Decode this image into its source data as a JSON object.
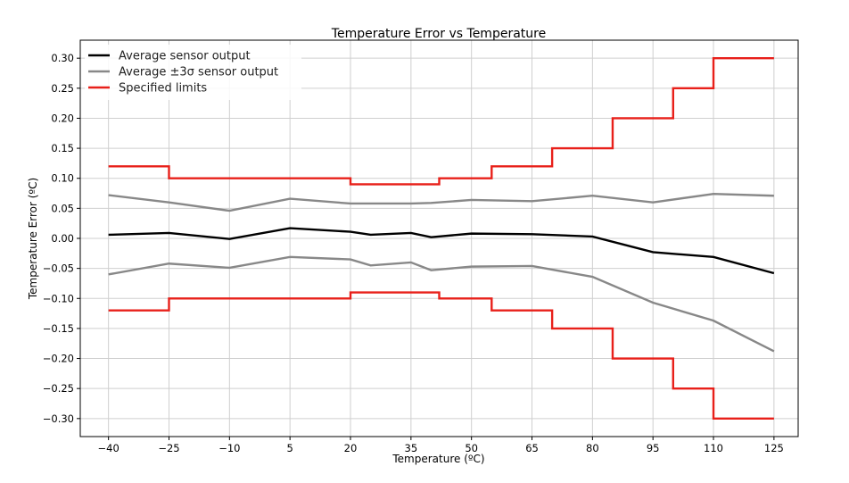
{
  "chart_data": {
    "type": "line",
    "title": "Temperature Error vs Temperature",
    "xlabel": "Temperature (ºC)",
    "ylabel": "Temperature Error  (ºC)",
    "xlim": [
      -47,
      131
    ],
    "ylim": [
      -0.33,
      0.33
    ],
    "x_ticks": [
      -40,
      -25,
      -10,
      5,
      20,
      35,
      50,
      65,
      80,
      95,
      110,
      125
    ],
    "x_tick_labels": [
      "−40",
      "−25",
      "−10",
      "5",
      "20",
      "35",
      "50",
      "65",
      "80",
      "95",
      "110",
      "125"
    ],
    "y_ticks": [
      0.3,
      0.25,
      0.2,
      0.15,
      0.1,
      0.05,
      0.0,
      -0.05,
      -0.1,
      -0.15,
      -0.2,
      -0.25,
      -0.3
    ],
    "y_tick_labels": [
      "0.30",
      "0.25",
      "0.20",
      "0.15",
      "0.10",
      "0.05",
      "0.00",
      "−0.05",
      "−0.10",
      "−0.15",
      "−0.20",
      "−0.25",
      "−0.30"
    ],
    "grid": true,
    "legend_position": "top-left",
    "legend": [
      {
        "label": "Average sensor output",
        "color": "#000000"
      },
      {
        "label": "Average ±3σ sensor output",
        "color": "#888888"
      },
      {
        "label": "Specified limits",
        "color": "#e8201a"
      }
    ],
    "series": [
      {
        "name": "Average sensor output",
        "color": "#000000",
        "width": 2.4,
        "x": [
          -40,
          -25,
          -10,
          5,
          20,
          25,
          35,
          40,
          50,
          65,
          80,
          95,
          110,
          125
        ],
        "y": [
          0.006,
          0.009,
          -0.001,
          0.017,
          0.011,
          0.006,
          0.009,
          0.002,
          0.008,
          0.007,
          0.003,
          -0.023,
          -0.031,
          -0.058
        ]
      },
      {
        "name": "Average ±3σ sensor output (upper)",
        "color": "#888888",
        "width": 2.4,
        "x": [
          -40,
          -25,
          -10,
          5,
          20,
          35,
          40,
          50,
          65,
          80,
          95,
          110,
          125
        ],
        "y": [
          0.072,
          0.06,
          0.046,
          0.066,
          0.058,
          0.058,
          0.059,
          0.064,
          0.062,
          0.071,
          0.06,
          0.074,
          0.071
        ]
      },
      {
        "name": "Average ±3σ sensor output (lower)",
        "color": "#888888",
        "width": 2.4,
        "x": [
          -40,
          -25,
          -10,
          5,
          20,
          25,
          35,
          40,
          50,
          65,
          80,
          95,
          110,
          125
        ],
        "y": [
          -0.06,
          -0.042,
          -0.049,
          -0.031,
          -0.035,
          -0.045,
          -0.04,
          -0.053,
          -0.047,
          -0.046,
          -0.064,
          -0.107,
          -0.137,
          -0.188
        ]
      },
      {
        "name": "Specified limits (upper)",
        "color": "#e8201a",
        "width": 2.4,
        "x": [
          -40,
          -25,
          -25,
          20,
          20,
          42,
          42,
          55,
          55,
          70,
          70,
          85,
          85,
          100,
          100,
          110,
          110,
          125
        ],
        "y": [
          0.12,
          0.12,
          0.1,
          0.1,
          0.09,
          0.09,
          0.1,
          0.1,
          0.12,
          0.12,
          0.15,
          0.15,
          0.2,
          0.2,
          0.25,
          0.25,
          0.3,
          0.3
        ]
      },
      {
        "name": "Specified limits (lower)",
        "color": "#e8201a",
        "width": 2.4,
        "x": [
          -40,
          -25,
          -25,
          20,
          20,
          42,
          42,
          55,
          55,
          70,
          70,
          85,
          85,
          100,
          100,
          110,
          110,
          125
        ],
        "y": [
          -0.12,
          -0.12,
          -0.1,
          -0.1,
          -0.09,
          -0.09,
          -0.1,
          -0.1,
          -0.12,
          -0.12,
          -0.15,
          -0.15,
          -0.2,
          -0.2,
          -0.25,
          -0.25,
          -0.3,
          -0.3
        ]
      }
    ]
  }
}
